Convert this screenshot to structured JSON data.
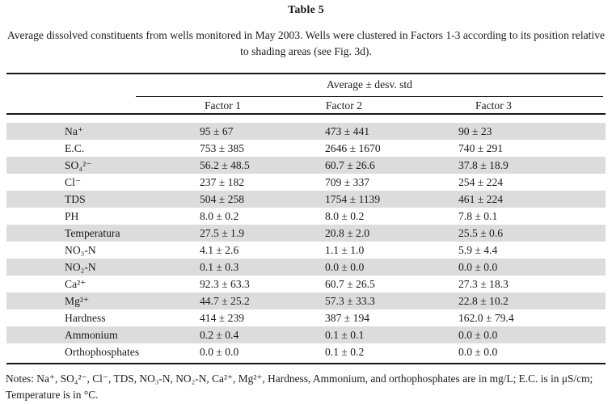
{
  "colors": {
    "row_shade": "#dcdcdc"
  },
  "table": {
    "title": "Table 5",
    "caption": "Average dissolved constituents from wells monitored in May 2003. Wells were clustered in Factors 1-3 according to its position relative to shading areas (see Fig. 3d).",
    "header": {
      "group_label": "Average ± desv. std",
      "columns": [
        "Factor 1",
        "Factor 2",
        "Factor 3"
      ]
    },
    "rows": [
      {
        "label": "Na⁺",
        "values": [
          "95 ± 67",
          "473 ± 441",
          "90 ± 23"
        ]
      },
      {
        "label": "E.C.",
        "values": [
          "753 ± 385",
          "2646 ± 1670",
          "740 ± 291"
        ]
      },
      {
        "label": "SO₄²⁻",
        "values": [
          "56.2 ± 48.5",
          "60.7 ± 26.6",
          "37.8 ± 18.9"
        ]
      },
      {
        "label": "Cl⁻",
        "values": [
          "237 ± 182",
          "709 ± 337",
          "254 ± 224"
        ]
      },
      {
        "label": "TDS",
        "values": [
          "504 ± 258",
          "1754 ± 1139",
          "461 ± 224"
        ]
      },
      {
        "label": "PH",
        "values": [
          "8.0 ± 0.2",
          "8.0 ± 0.2",
          "7.8 ± 0.1"
        ]
      },
      {
        "label": "Temperatura",
        "values": [
          "27.5 ± 1.9",
          "20.8 ± 2.0",
          "25.5 ± 0.6"
        ]
      },
      {
        "label": "NO₃-N",
        "values": [
          "4.1 ± 2.6",
          "1.1 ± 1.0",
          "5.9 ± 4.4"
        ]
      },
      {
        "label": "NO₂-N",
        "values": [
          "0.1 ± 0.3",
          "0.0 ± 0.0",
          "0.0 ± 0.0"
        ]
      },
      {
        "label": "Ca²⁺",
        "values": [
          "92.3 ± 63.3",
          "60.7 ± 26.5",
          "27.3 ± 18.3"
        ]
      },
      {
        "label": "Mg²⁺",
        "values": [
          "44.7 ± 25.2",
          "57.3 ± 33.3",
          "22.8 ± 10.2"
        ]
      },
      {
        "label": "Hardness",
        "values": [
          "414 ± 239",
          "387 ± 194",
          "162.0 ± 79.4"
        ]
      },
      {
        "label": "Ammonium",
        "values": [
          "0.2 ± 0.4",
          "0.1 ± 0.1",
          "0.0 ± 0.0"
        ]
      },
      {
        "label": "Orthophosphates",
        "values": [
          "0.0 ± 0.0",
          "0.1 ± 0.2",
          "0.0 ± 0.0"
        ]
      }
    ],
    "notes": [
      "Notes: Na⁺, SO₄²⁻, Cl⁻, TDS, NO₃-N, NO₂-N, Ca²⁺, Mg²⁺, Hardness, Ammonium, and orthophosphates are in mg/L; E.C. is in μS/cm;",
      "Temperature is in °C."
    ]
  }
}
